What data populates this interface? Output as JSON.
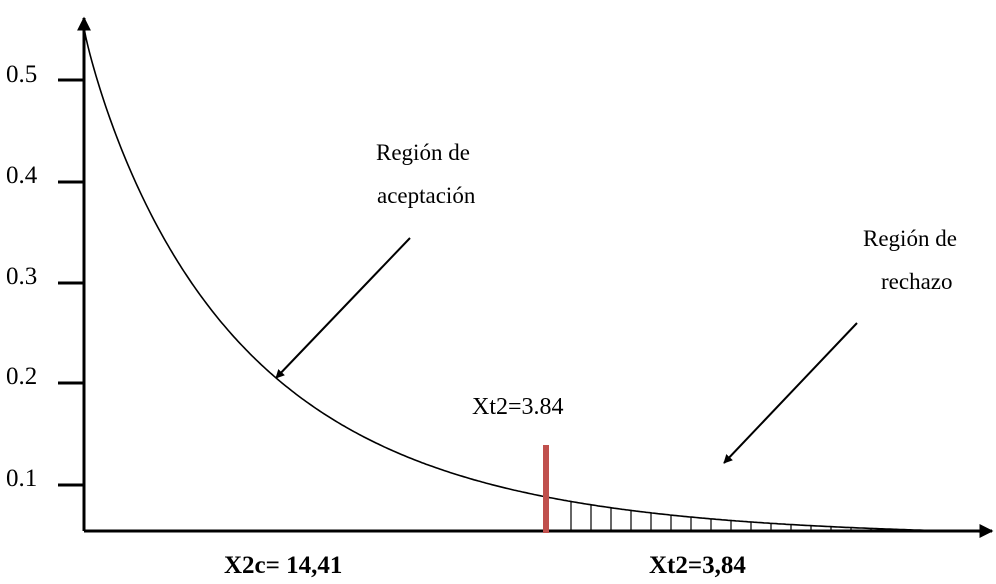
{
  "chart_data": {
    "type": "area",
    "title": "",
    "xlabel": "",
    "ylabel": "",
    "y_ticks": [
      "0.1",
      "0.2",
      "0.3",
      "0.4",
      "0.5"
    ],
    "y_values": [
      0.1,
      0.2,
      0.3,
      0.4,
      0.5
    ],
    "ylim": [
      0,
      0.5
    ],
    "grid": false,
    "curve": "decreasing chi-square density",
    "critical_line_label": "Xt2=3.84",
    "critical_line_color": "#c0504d",
    "annotations": {
      "acceptance_line1": "Región de",
      "acceptance_line2": "aceptación",
      "rejection_line1": "Región de",
      "rejection_line2": "rechazo"
    },
    "bottom_labels": {
      "calculated": "X2c= 14,41",
      "tabulated": "Xt2=3,84"
    }
  }
}
